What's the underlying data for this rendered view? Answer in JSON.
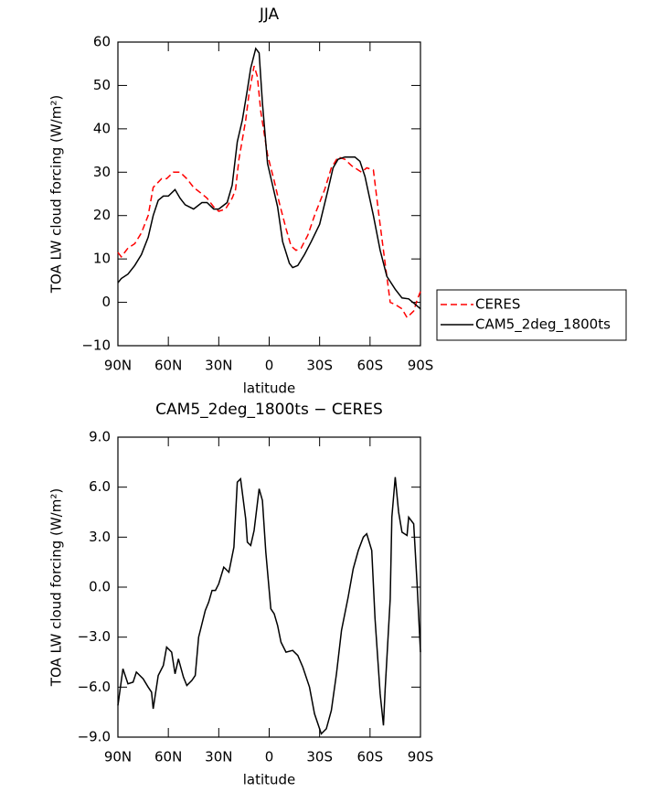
{
  "chart_data": [
    {
      "type": "line",
      "title": "JJA",
      "x_label": "latitude",
      "y_label": "TOA LW cloud forcing (W/m²)",
      "xlim": [
        90,
        -90
      ],
      "xticks": [
        {
          "value": 90,
          "label": "90N"
        },
        {
          "value": 60,
          "label": "60N"
        },
        {
          "value": 30,
          "label": "30N"
        },
        0,
        {
          "value": -30,
          "label": "30S"
        },
        {
          "value": -60,
          "label": "60S"
        },
        {
          "value": -90,
          "label": "90S"
        }
      ],
      "ylim": [
        -10,
        60
      ],
      "yticks": [
        {
          "value": -10,
          "label": "−10"
        },
        0,
        10,
        20,
        30,
        40,
        50,
        60
      ],
      "legend": "right",
      "series": [
        {
          "name": "CERES",
          "color": "#ff0000",
          "style": "dashed",
          "x": [
            90,
            88,
            84,
            80,
            76,
            72,
            69,
            64,
            61,
            57,
            53,
            49,
            45,
            40,
            37,
            33,
            30,
            26,
            22,
            20,
            18,
            14,
            12,
            9,
            7,
            5,
            1,
            -3,
            -6,
            -10,
            -13,
            -16,
            -19,
            -23,
            -27,
            -33,
            -37,
            -41,
            -45,
            -49,
            -55,
            -58,
            -62,
            -65,
            -68,
            -72,
            -75,
            -79,
            -82,
            -86,
            -88,
            -90
          ],
          "values": [
            11.5,
            10.5,
            12.5,
            13.5,
            16,
            20,
            26.5,
            28.5,
            28.5,
            30,
            30,
            28.5,
            26.5,
            25,
            24,
            22,
            21,
            21.5,
            24,
            26,
            33,
            42,
            48,
            54.5,
            52,
            44,
            34,
            28,
            23,
            17,
            13,
            12,
            12.5,
            15.5,
            20,
            26,
            31,
            33.5,
            33,
            31.5,
            30,
            31,
            30.5,
            21,
            12,
            0,
            -0.5,
            -1.5,
            -3.5,
            -2,
            0.5,
            2.5
          ]
        },
        {
          "name": "CAM5_2deg_1800ts",
          "color": "#000000",
          "style": "solid",
          "x": [
            90,
            88,
            84,
            80,
            76,
            72,
            69,
            66,
            63,
            60,
            56,
            53,
            50,
            45,
            40,
            37,
            33,
            30,
            25,
            22,
            19,
            16,
            13,
            11,
            8,
            6,
            4,
            1,
            -2,
            -5,
            -8,
            -12,
            -14,
            -17,
            -21,
            -25,
            -30,
            -35,
            -38,
            -41,
            -45,
            -51,
            -54,
            -57,
            -62,
            -66,
            -70,
            -75,
            -79,
            -83,
            -87,
            -90
          ],
          "values": [
            4.5,
            5.5,
            6.5,
            8.5,
            11,
            15,
            20,
            23.5,
            24.5,
            24.5,
            26,
            24,
            22.5,
            21.5,
            23,
            23,
            21.5,
            21.5,
            23,
            27,
            37,
            42,
            49,
            54,
            58.5,
            57.5,
            46,
            32,
            27,
            22,
            14,
            9,
            8,
            8.5,
            11,
            14,
            18,
            26,
            31,
            33,
            33.5,
            33.5,
            32.5,
            29,
            20,
            12,
            6,
            3,
            1,
            0.8,
            -0.5,
            -1.5
          ]
        }
      ]
    },
    {
      "type": "line",
      "title": "CAM5_2deg_1800ts − CERES",
      "x_label": "latitude",
      "y_label": "TOA LW cloud forcing (W/m²)",
      "xlim": [
        90,
        -90
      ],
      "xticks": [
        {
          "value": 90,
          "label": "90N"
        },
        {
          "value": 60,
          "label": "60N"
        },
        {
          "value": 30,
          "label": "30N"
        },
        0,
        {
          "value": -30,
          "label": "30S"
        },
        {
          "value": -60,
          "label": "60S"
        },
        {
          "value": -90,
          "label": "90S"
        }
      ],
      "ylim": [
        -9,
        9
      ],
      "yticks": [
        {
          "value": -9,
          "label": "−9.0"
        },
        {
          "value": -6,
          "label": "−6.0"
        },
        {
          "value": -3,
          "label": "−3.0"
        },
        {
          "value": 0,
          "label": "0.0"
        },
        {
          "value": 3,
          "label": "3.0"
        },
        {
          "value": 6,
          "label": "6.0"
        },
        {
          "value": 9,
          "label": "9.0"
        }
      ],
      "color": "#000000",
      "x": [
        90,
        87,
        84,
        81,
        79,
        75,
        72,
        70,
        69,
        66,
        63,
        61,
        58,
        56,
        54,
        51,
        49,
        46,
        44,
        42,
        38,
        36,
        34,
        32,
        30,
        27,
        24,
        21,
        19,
        17,
        14,
        13,
        11,
        9,
        6,
        4,
        2,
        -1,
        -3,
        -5,
        -7,
        -10,
        -14,
        -17,
        -20,
        -24,
        -27,
        -31,
        -34,
        -37,
        -40,
        -43,
        -47,
        -50,
        -53,
        -56,
        -58,
        -61,
        -63,
        -66,
        -68,
        -69,
        -72,
        -73,
        -75,
        -77,
        -79,
        -82,
        -83,
        -86,
        -88,
        -90
      ],
      "values": [
        -7.1,
        -4.9,
        -5.8,
        -5.7,
        -5.1,
        -5.5,
        -6.0,
        -6.3,
        -7.3,
        -5.3,
        -4.7,
        -3.6,
        -3.9,
        -5.2,
        -4.3,
        -5.4,
        -5.9,
        -5.6,
        -5.3,
        -3.0,
        -1.4,
        -0.9,
        -0.2,
        -0.2,
        0.2,
        1.2,
        0.9,
        2.4,
        6.3,
        6.5,
        4.1,
        2.7,
        2.5,
        3.4,
        5.9,
        5.2,
        2.1,
        -1.3,
        -1.6,
        -2.3,
        -3.3,
        -3.9,
        -3.8,
        -4.1,
        -4.8,
        -6.0,
        -7.6,
        -8.8,
        -8.5,
        -7.4,
        -5.2,
        -2.6,
        -0.6,
        1.1,
        2.2,
        3.0,
        3.2,
        2.2,
        -1.9,
        -6.4,
        -8.3,
        -6.1,
        -0.7,
        4.2,
        6.6,
        4.5,
        3.3,
        3.1,
        4.2,
        3.8,
        0.2,
        -3.9
      ]
    }
  ]
}
